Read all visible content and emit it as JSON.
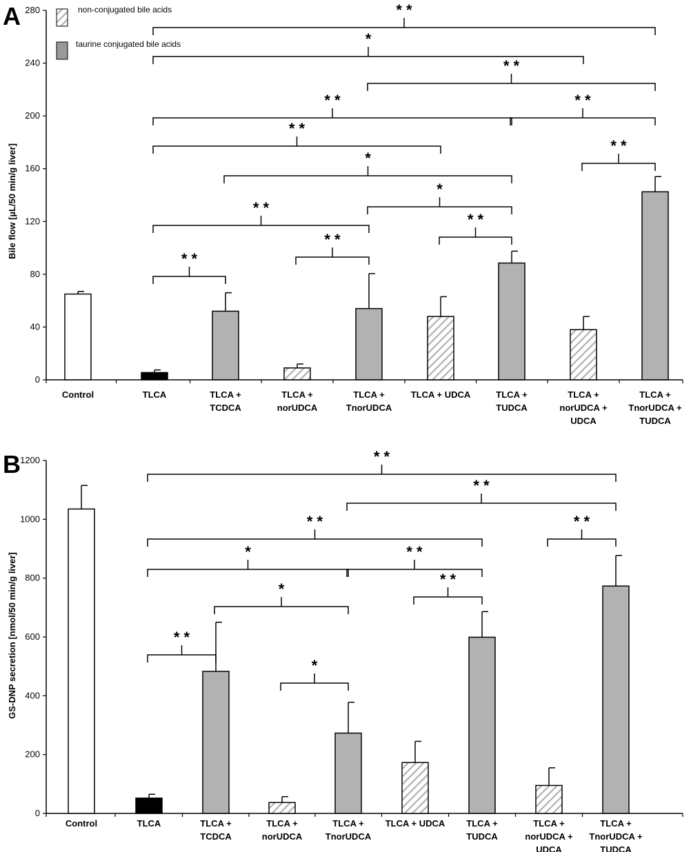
{
  "legend": {
    "items": [
      {
        "label": "non-conjugated bile acids",
        "pattern": "hatched"
      },
      {
        "label": "taurine conjugated bile acids",
        "pattern": "gray"
      }
    ]
  },
  "colors": {
    "control": "#ffffff",
    "tlca": "#000000",
    "taurine": "#b2b2b2",
    "hatch": "#b2b2b2",
    "outline": "#000000"
  },
  "chart_data": [
    {
      "type": "bar",
      "panel": "A",
      "ylabel": "Bile flow [µL/50 min/g liver]",
      "xlabel": "",
      "ylim": [
        0,
        280
      ],
      "yticks": [
        0,
        40,
        80,
        120,
        160,
        200,
        240,
        280
      ],
      "categories": [
        [
          "Control"
        ],
        [
          "TLCA"
        ],
        [
          "TLCA +",
          "TCDCA"
        ],
        [
          "TLCA +",
          "norUDCA"
        ],
        [
          "TLCA +",
          "TnorUDCA"
        ],
        [
          "TLCA + UDCA"
        ],
        [
          "TLCA +",
          "TUDCA"
        ],
        [
          "TLCA +",
          "norUDCA +",
          "UDCA"
        ],
        [
          "TLCA +",
          "TnorUDCA +",
          "TUDCA"
        ]
      ],
      "styles": [
        "white",
        "black",
        "gray",
        "hatched",
        "gray",
        "hatched",
        "gray",
        "hatched",
        "gray"
      ],
      "values": [
        65,
        5.5,
        52,
        9,
        54,
        48,
        88.5,
        38,
        142.5
      ],
      "errors": [
        2,
        2,
        14,
        3,
        26.5,
        15,
        9,
        10,
        11.5
      ],
      "significance": [
        {
          "from": 1,
          "to": 8,
          "label": "* *"
        },
        {
          "from": 1,
          "to": 7,
          "label": "*"
        },
        {
          "from": 4,
          "to": 8,
          "label": "* *"
        },
        {
          "from": 1,
          "to": 6,
          "label": "* *"
        },
        {
          "from": 6,
          "to": 8,
          "label": "* *"
        },
        {
          "from": 1,
          "to": 5,
          "label": "* *"
        },
        {
          "from": 7,
          "to": 8,
          "label": "* *"
        },
        {
          "from": 2,
          "to": 6,
          "label": "*"
        },
        {
          "from": 1,
          "to": 4,
          "label": "* *"
        },
        {
          "from": 4,
          "to": 6,
          "label": "*"
        },
        {
          "from": 5,
          "to": 6,
          "label": "* *"
        },
        {
          "from": 3,
          "to": 4,
          "label": "* *"
        },
        {
          "from": 1,
          "to": 2,
          "label": "* *"
        }
      ]
    },
    {
      "type": "bar",
      "panel": "B",
      "ylabel": "GS-DNP secretion [nmol/50 min/g liver]",
      "xlabel": "",
      "ylim": [
        0,
        1200
      ],
      "yticks": [
        0,
        200,
        400,
        600,
        800,
        1000,
        1200
      ],
      "categories": [
        [
          "Control"
        ],
        [
          "TLCA"
        ],
        [
          "TLCA +",
          "TCDCA"
        ],
        [
          "TLCA +",
          "norUDCA"
        ],
        [
          "TLCA +",
          "TnorUDCA"
        ],
        [
          "TLCA + UDCA"
        ],
        [
          "TLCA +",
          "TUDCA"
        ],
        [
          "TLCA +",
          "norUDCA +",
          "UDCA"
        ],
        [
          "TLCA +",
          "TnorUDCA +",
          "TUDCA"
        ]
      ],
      "styles": [
        "white",
        "black",
        "gray",
        "hatched",
        "gray",
        "hatched",
        "gray",
        "hatched",
        "gray"
      ],
      "values": [
        1035,
        52,
        483,
        37,
        273,
        173,
        599,
        95,
        773
      ],
      "errors": [
        80,
        13,
        167,
        20,
        105,
        72,
        87,
        60,
        104
      ],
      "significance": [
        {
          "from": 1,
          "to": 8,
          "label": "* *"
        },
        {
          "from": 4,
          "to": 8,
          "label": "* *"
        },
        {
          "from": 1,
          "to": 6,
          "label": "* *"
        },
        {
          "from": 7,
          "to": 8,
          "label": "* *"
        },
        {
          "from": 1,
          "to": 4,
          "label": "*"
        },
        {
          "from": 4,
          "to": 6,
          "label": "* *"
        },
        {
          "from": 5,
          "to": 6,
          "label": "* *"
        },
        {
          "from": 2,
          "to": 4,
          "label": "*"
        },
        {
          "from": 1,
          "to": 2,
          "label": "* *"
        },
        {
          "from": 3,
          "to": 4,
          "label": "*"
        }
      ]
    }
  ]
}
